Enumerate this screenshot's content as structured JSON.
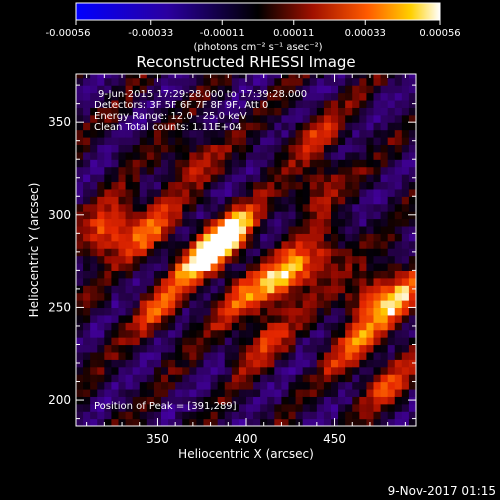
{
  "chart_data": {
    "type": "heatmap",
    "colorbar": {
      "ticks": [
        "-0.00056",
        "-0.00033",
        "-0.00011",
        "0.00011",
        "0.00033",
        "0.00056"
      ],
      "range": [
        -0.00056,
        0.00056
      ],
      "units": "(photons cm⁻² s⁻¹ asec⁻²)"
    },
    "title": "Reconstructed RHESSI Image",
    "annotations": [
      "9-Jun-2015 17:29:28.000 to 17:39:28.000",
      "Detectors: 3F 5F 6F 7F 8F 9F, Att 0",
      "Energy Range: 12.0 - 25.0 keV",
      "Clean     Total counts: 1.11E+04"
    ],
    "peak_label": "Position of Peak = [391,289]",
    "xlabel": "Heliocentric X (arcsec)",
    "ylabel": "Heliocentric Y (arcsec)",
    "xticks": [
      350,
      400,
      450
    ],
    "yticks": [
      200,
      250,
      300,
      350
    ],
    "xlim": [
      304,
      496
    ],
    "ylim": [
      186,
      376
    ],
    "peak": {
      "x": 391,
      "y": 289
    },
    "hotspots": [
      {
        "x": 391,
        "y": 289,
        "value": 1.0
      },
      {
        "x": 375,
        "y": 278,
        "value": 0.9
      },
      {
        "x": 322,
        "y": 292,
        "value": 0.8
      },
      {
        "x": 420,
        "y": 266,
        "value": 0.85
      },
      {
        "x": 345,
        "y": 292,
        "value": 0.6
      },
      {
        "x": 440,
        "y": 275,
        "value": 0.55
      },
      {
        "x": 470,
        "y": 258,
        "value": 0.6
      },
      {
        "x": 486,
        "y": 253,
        "value": 0.75
      },
      {
        "x": 350,
        "y": 250,
        "value": 0.5
      },
      {
        "x": 395,
        "y": 255,
        "value": 0.5
      },
      {
        "x": 410,
        "y": 232,
        "value": 0.55
      },
      {
        "x": 460,
        "y": 228,
        "value": 0.55
      },
      {
        "x": 480,
        "y": 210,
        "value": 0.5
      },
      {
        "x": 440,
        "y": 315,
        "value": 0.45
      },
      {
        "x": 370,
        "y": 330,
        "value": 0.45
      },
      {
        "x": 440,
        "y": 345,
        "value": 0.4
      }
    ],
    "grid": false
  },
  "footer": {
    "timestamp": "9-Nov-2017 01:15"
  },
  "colors": {
    "background": "#000000",
    "text": "#ffffff",
    "colorbar_negative_end": "#0000ff",
    "colorbar_positive_end": "#ffffff"
  }
}
